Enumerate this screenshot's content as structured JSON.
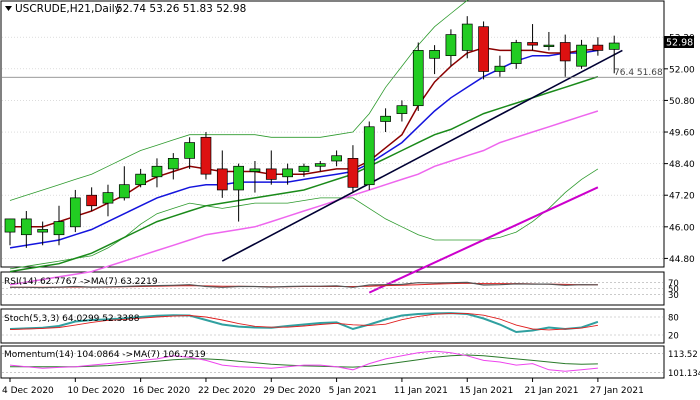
{
  "header": {
    "symbol": "USCRUDE,H21,Daily",
    "ohlc": "52.74 53.26 51.83 52.98"
  },
  "colors": {
    "bull": "#22cc22",
    "bear": "#dd1111",
    "ma_red": "#8b0000",
    "ma_blue": "#1414dd",
    "ma_green": "#1a8a1a",
    "ma_magenta": "#ee66ee",
    "band": "#2d9a2d",
    "trend": "#000033",
    "trend_magenta": "#cc00cc"
  },
  "chart_data": [
    {
      "type": "candlestick",
      "name": "price",
      "y_ticks": [
        44.8,
        46.0,
        47.2,
        48.4,
        49.6,
        50.8,
        52.0,
        53.2
      ],
      "ylim": [
        44.55,
        54.5
      ],
      "current_price": "52.98",
      "fib_label": "76.4 51.68",
      "fib_level": 51.68,
      "x_labels": [
        {
          "label": "4 Dec 2020",
          "i": 0
        },
        {
          "label": "10 Dec 2020",
          "i": 4
        },
        {
          "label": "16 Dec 2020",
          "i": 8
        },
        {
          "label": "22 Dec 2020",
          "i": 12
        },
        {
          "label": "29 Dec 2020",
          "i": 16
        },
        {
          "label": "5 Jan 2021",
          "i": 20
        },
        {
          "label": "11 Jan 2021",
          "i": 24
        },
        {
          "label": "15 Jan 2021",
          "i": 28
        },
        {
          "label": "21 Jan 2021",
          "i": 32
        },
        {
          "label": "27 Jan 2021",
          "i": 36
        }
      ],
      "candles": [
        {
          "o": 45.8,
          "h": 46.3,
          "l": 45.3,
          "c": 46.3
        },
        {
          "o": 45.7,
          "h": 46.6,
          "l": 45.2,
          "c": 46.3
        },
        {
          "o": 45.8,
          "h": 46.2,
          "l": 45.3,
          "c": 45.9
        },
        {
          "o": 45.7,
          "h": 46.8,
          "l": 45.3,
          "c": 46.2
        },
        {
          "o": 46.0,
          "h": 47.4,
          "l": 45.8,
          "c": 47.1
        },
        {
          "o": 47.2,
          "h": 47.5,
          "l": 46.6,
          "c": 46.8
        },
        {
          "o": 46.9,
          "h": 47.6,
          "l": 46.4,
          "c": 47.3
        },
        {
          "o": 47.1,
          "h": 48.3,
          "l": 47.0,
          "c": 47.6
        },
        {
          "o": 47.6,
          "h": 48.2,
          "l": 47.5,
          "c": 48.0
        },
        {
          "o": 47.9,
          "h": 48.6,
          "l": 47.5,
          "c": 48.3
        },
        {
          "o": 48.2,
          "h": 48.8,
          "l": 47.8,
          "c": 48.6
        },
        {
          "o": 48.6,
          "h": 49.4,
          "l": 48.2,
          "c": 49.2
        },
        {
          "o": 49.4,
          "h": 49.6,
          "l": 47.8,
          "c": 48.0
        },
        {
          "o": 48.2,
          "h": 48.9,
          "l": 47.1,
          "c": 47.4
        },
        {
          "o": 47.4,
          "h": 48.4,
          "l": 46.2,
          "c": 48.3
        },
        {
          "o": 48.1,
          "h": 48.5,
          "l": 47.3,
          "c": 48.2
        },
        {
          "o": 48.2,
          "h": 48.9,
          "l": 47.6,
          "c": 47.8
        },
        {
          "o": 47.9,
          "h": 48.4,
          "l": 47.6,
          "c": 48.2
        },
        {
          "o": 48.1,
          "h": 48.4,
          "l": 47.9,
          "c": 48.3
        },
        {
          "o": 48.3,
          "h": 48.5,
          "l": 48.1,
          "c": 48.4
        },
        {
          "o": 48.5,
          "h": 48.9,
          "l": 48.3,
          "c": 48.7
        },
        {
          "o": 48.6,
          "h": 49.1,
          "l": 47.3,
          "c": 47.5
        },
        {
          "o": 47.6,
          "h": 50.0,
          "l": 47.4,
          "c": 49.8
        },
        {
          "o": 50.0,
          "h": 50.5,
          "l": 49.6,
          "c": 50.2
        },
        {
          "o": 50.3,
          "h": 50.8,
          "l": 50.0,
          "c": 50.6
        }
      ],
      "candles_late": [
        {
          "o": 50.6,
          "h": 53.0,
          "l": 50.4,
          "c": 52.7
        },
        {
          "o": 52.4,
          "h": 52.9,
          "l": 51.8,
          "c": 52.7
        },
        {
          "o": 52.5,
          "h": 53.5,
          "l": 52.1,
          "c": 53.3
        },
        {
          "o": 52.7,
          "h": 54.0,
          "l": 52.4,
          "c": 53.7
        },
        {
          "o": 53.6,
          "h": 53.8,
          "l": 51.6,
          "c": 51.9
        },
        {
          "o": 51.9,
          "h": 52.5,
          "l": 51.7,
          "c": 52.1
        },
        {
          "o": 52.2,
          "h": 53.1,
          "l": 52.0,
          "c": 53.0
        },
        {
          "o": 53.0,
          "h": 53.7,
          "l": 52.7,
          "c": 52.9
        },
        {
          "o": 52.9,
          "h": 53.4,
          "l": 52.7,
          "c": 52.9
        },
        {
          "o": 53.0,
          "h": 53.3,
          "l": 51.7,
          "c": 52.3
        },
        {
          "o": 52.1,
          "h": 53.1,
          "l": 52.0,
          "c": 52.9
        },
        {
          "o": 52.9,
          "h": 53.2,
          "l": 52.5,
          "c": 52.7
        },
        {
          "o": 52.74,
          "h": 53.26,
          "l": 51.83,
          "c": 52.98
        }
      ],
      "ma_red": [
        46.0,
        46.0,
        46.0,
        46.2,
        46.4,
        46.6,
        46.9,
        47.2,
        47.6,
        47.9,
        48.1,
        48.3,
        48.2,
        48.1,
        48.1,
        48.1,
        48.0,
        48.0,
        48.0,
        48.1,
        48.2,
        48.2,
        48.5,
        49.0,
        49.5,
        50.6,
        51.5,
        52.1,
        52.6,
        52.8,
        52.7,
        52.7,
        52.7,
        52.6,
        52.6,
        52.7,
        52.75
      ],
      "ma_blue": [
        45.2,
        45.3,
        45.4,
        45.5,
        45.7,
        45.9,
        46.2,
        46.5,
        46.8,
        47.1,
        47.3,
        47.5,
        47.6,
        47.6,
        47.7,
        47.7,
        47.7,
        47.7,
        47.8,
        47.9,
        48.0,
        48.1,
        48.4,
        48.8,
        49.2,
        49.8,
        50.4,
        50.9,
        51.3,
        51.7,
        52.0,
        52.3,
        52.5,
        52.5,
        52.6,
        52.6,
        52.7
      ],
      "ma_green": [
        44.3,
        44.4,
        44.5,
        44.6,
        44.8,
        45.0,
        45.3,
        45.6,
        45.9,
        46.2,
        46.4,
        46.6,
        46.8,
        46.9,
        47.0,
        47.1,
        47.2,
        47.3,
        47.4,
        47.6,
        47.8,
        48.0,
        48.3,
        48.6,
        48.9,
        49.2,
        49.5,
        49.7,
        50.0,
        50.3,
        50.5,
        50.7,
        50.9,
        51.1,
        51.3,
        51.5,
        51.7
      ],
      "ma_magenta": [
        43.8,
        43.9,
        44.0,
        44.1,
        44.2,
        44.3,
        44.5,
        44.7,
        44.9,
        45.1,
        45.3,
        45.5,
        45.7,
        45.8,
        45.9,
        46.0,
        46.2,
        46.4,
        46.6,
        46.8,
        47.0,
        47.2,
        47.4,
        47.6,
        47.8,
        48.0,
        48.3,
        48.5,
        48.7,
        48.9,
        49.2,
        49.4,
        49.6,
        49.8,
        50.0,
        50.2,
        50.4
      ],
      "band_upper": [
        47.0,
        47.2,
        47.4,
        47.6,
        47.8,
        48.0,
        48.3,
        48.6,
        48.9,
        49.1,
        49.3,
        49.5,
        49.5,
        49.5,
        49.5,
        49.5,
        49.4,
        49.4,
        49.4,
        49.4,
        49.5,
        49.6,
        50.3,
        51.3,
        52.1,
        52.9,
        53.6,
        54.1,
        54.6,
        54.9,
        55.0,
        55.1,
        55.1,
        55.1,
        55.1,
        55.1,
        55.1
      ],
      "band_lower": [
        44.4,
        44.5,
        44.6,
        44.7,
        44.8,
        44.9,
        45.2,
        45.6,
        46.1,
        46.5,
        46.7,
        46.9,
        46.8,
        46.7,
        46.8,
        46.9,
        46.9,
        46.9,
        47.0,
        47.1,
        47.1,
        47.1,
        46.7,
        46.3,
        46.0,
        45.7,
        45.5,
        45.5,
        45.5,
        45.5,
        45.6,
        45.8,
        46.2,
        46.7,
        47.3,
        47.8,
        48.2
      ],
      "trendline": [
        {
          "i": 13.0,
          "v": 44.7
        },
        {
          "i": 37.5,
          "v": 52.7
        }
      ],
      "trendline_magenta": [
        {
          "i": 22,
          "v": 43.5
        },
        {
          "i": 36,
          "v": 47.5
        }
      ]
    },
    {
      "type": "line",
      "name": "rsi",
      "label": "RSI(14) 62.7767 ->MA(7) 63.2219",
      "y_ticks": [
        70,
        50,
        30
      ],
      "ylim": [
        0,
        100
      ],
      "rsi": [
        54,
        54,
        53,
        55,
        57,
        55,
        56,
        57,
        59,
        60,
        61,
        63,
        57,
        54,
        57,
        57,
        55,
        57,
        58,
        58,
        59,
        54,
        62,
        63,
        64,
        70,
        69,
        70,
        71,
        62,
        63,
        66,
        65,
        65,
        61,
        63,
        62.78
      ],
      "rsi_ma": [
        54,
        54,
        54,
        54,
        55,
        55,
        55,
        56,
        57,
        58,
        59,
        60,
        59,
        58,
        58,
        57,
        56,
        56,
        57,
        57,
        57,
        57,
        58,
        60,
        61,
        63,
        65,
        67,
        68,
        67,
        67,
        67,
        66,
        65,
        64,
        63,
        63.22
      ]
    },
    {
      "type": "line",
      "name": "stochastic",
      "label": "Stoch(5,3,3) 64.0299 52.3388",
      "y_ticks": [
        80,
        20
      ],
      "ylim": [
        0,
        100
      ],
      "k": [
        40,
        42,
        44,
        50,
        65,
        70,
        72,
        75,
        80,
        84,
        86,
        85,
        70,
        55,
        48,
        45,
        44,
        50,
        55,
        60,
        62,
        40,
        55,
        72,
        85,
        90,
        92,
        93,
        90,
        75,
        55,
        30,
        35,
        45,
        40,
        45,
        64.03
      ],
      "d": [
        38,
        40,
        42,
        45,
        53,
        62,
        69,
        72,
        76,
        80,
        83,
        85,
        80,
        70,
        58,
        49,
        46,
        46,
        50,
        55,
        59,
        54,
        52,
        56,
        71,
        82,
        89,
        92,
        92,
        86,
        73,
        53,
        40,
        37,
        40,
        43,
        52.34
      ]
    },
    {
      "type": "line",
      "name": "momentum",
      "label": "Momentum(14) 104.0864 ->MA(7) 106.7519",
      "y_ticks": [
        113.52,
        101.1345
      ],
      "ylim": [
        99.0,
        117.0
      ],
      "mom": [
        106,
        105,
        104,
        104.5,
        105,
        106,
        107,
        108,
        109,
        110,
        112,
        111,
        109,
        106,
        105,
        104.5,
        104,
        105,
        106,
        106,
        105,
        103,
        107,
        110,
        112,
        114,
        115,
        114,
        112,
        109,
        108,
        106,
        107,
        103,
        102,
        103,
        104.09
      ],
      "mom_ma": [
        105,
        105,
        105,
        105,
        105,
        105.3,
        105.7,
        106.5,
        107.5,
        108.5,
        109.5,
        110,
        110,
        109.5,
        108.5,
        107.5,
        106.5,
        106,
        105.5,
        105.3,
        105,
        104.7,
        105.3,
        106.5,
        108,
        109.5,
        111,
        112,
        112.5,
        112,
        111,
        110,
        109,
        108,
        107,
        106.5,
        106.75
      ]
    }
  ]
}
